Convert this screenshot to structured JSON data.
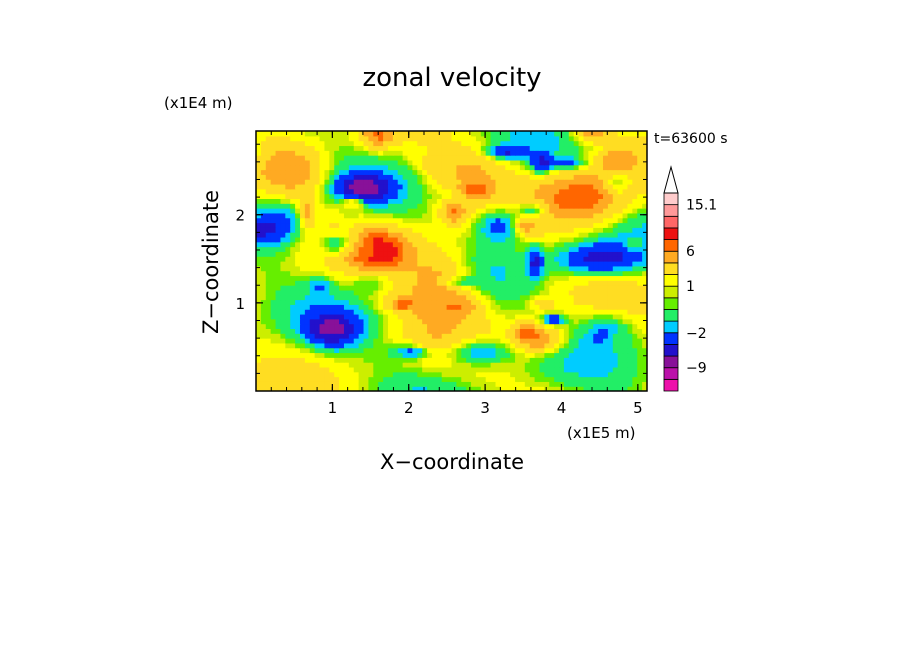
{
  "chart_data": {
    "type": "heatmap",
    "title": "zonal velocity",
    "xlabel": "X−coordinate",
    "ylabel": "Z−coordinate",
    "x_scale_label": "(x1E5 m)",
    "y_scale_label": "(x1E4 m)",
    "time_label": "t=63600 s",
    "xlim": [
      0,
      5.12
    ],
    "ylim": [
      0,
      2.95
    ],
    "x_ticks": [
      1,
      2,
      3,
      4,
      5
    ],
    "x_tick_labels": [
      "1",
      "2",
      "3",
      "4",
      "5"
    ],
    "y_ticks": [
      1,
      2
    ],
    "y_tick_labels": [
      "1",
      "2"
    ],
    "colorbar": {
      "levels": [
        -15,
        -12,
        -9,
        -6,
        -4,
        -2,
        -1,
        0,
        0.5,
        1,
        2,
        4,
        6,
        8,
        10,
        12.5,
        15.1
      ],
      "colors": [
        "#ee11aa",
        "#bb11aa",
        "#881199",
        "#2211cc",
        "#0033ff",
        "#00ccff",
        "#22ee66",
        "#66ee00",
        "#ccee00",
        "#ffff00",
        "#ffdd22",
        "#ffaa22",
        "#ff6600",
        "#ee1111",
        "#ff6666",
        "#ff9999",
        "#ffcccc"
      ],
      "labels": [
        {
          "value": 15.1,
          "text": "15.1"
        },
        {
          "value": 6,
          "text": "6"
        },
        {
          "value": 1,
          "text": "1"
        },
        {
          "value": -2,
          "text": "−2"
        },
        {
          "value": -9,
          "text": "−9"
        }
      ]
    }
  }
}
